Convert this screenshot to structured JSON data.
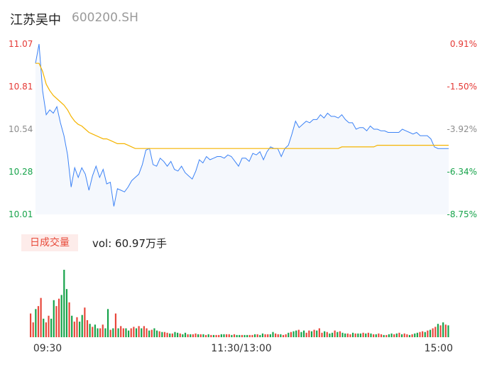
{
  "header": {
    "stock_name": "江苏吴中",
    "stock_code": "600200.SH"
  },
  "volume_panel": {
    "tab_label": "日成交量",
    "readout": "vol: 60.97万手"
  },
  "colors": {
    "price_line": "#3b82f6",
    "avg_line": "#f5b400",
    "up": "#e8463a",
    "down": "#16a34a",
    "axis_up": "#e53935",
    "axis_flat": "#8c8c8c",
    "axis_down": "#16a34a",
    "area_fill": "#f5f8fd"
  },
  "chart_data": [
    {
      "type": "line",
      "y_ticks": [
        "11.07",
        "10.81",
        "10.54",
        "10.28",
        "10.01"
      ],
      "pct_ticks": [
        "0.91%",
        "-1.50%",
        "-3.92%",
        "-6.34%",
        "-8.75%"
      ],
      "ylim": [
        10.01,
        11.07
      ],
      "x_ticks": [
        "09:30",
        "11:30/13:00",
        "15:00"
      ],
      "series": [
        {
          "values": [
            10.95,
            11.07,
            10.78,
            10.63,
            10.66,
            10.64,
            10.68,
            10.58,
            10.5,
            10.38,
            10.18,
            10.3,
            10.24,
            10.3,
            10.26,
            10.16,
            10.25,
            10.31,
            10.24,
            10.29,
            10.2,
            10.21,
            10.06,
            10.17,
            10.16,
            10.15,
            10.18,
            10.22,
            10.24,
            10.26,
            10.32,
            10.41,
            10.42,
            10.32,
            10.31,
            10.36,
            10.34,
            10.31,
            10.34,
            10.29,
            10.28,
            10.31,
            10.27,
            10.25,
            10.23,
            10.28,
            10.35,
            10.33,
            10.37,
            10.35,
            10.36,
            10.37,
            10.37,
            10.36,
            10.38,
            10.37,
            10.34,
            10.31,
            10.36,
            10.36,
            10.34,
            10.39,
            10.38,
            10.4,
            10.35,
            10.4,
            10.43,
            10.42,
            10.42,
            10.37,
            10.42,
            10.44,
            10.51,
            10.59,
            10.55,
            10.57,
            10.59,
            10.58,
            10.6,
            10.6,
            10.63,
            10.61,
            10.64,
            10.62,
            10.62,
            10.61,
            10.63,
            10.6,
            10.58,
            10.58,
            10.54,
            10.55,
            10.55,
            10.53,
            10.56,
            10.54,
            10.54,
            10.53,
            10.53,
            10.52,
            10.52,
            10.52,
            10.52,
            10.54,
            10.53,
            10.52,
            10.51,
            10.52,
            10.5,
            10.5,
            10.5,
            10.48,
            10.43,
            10.42,
            10.42,
            10.42,
            10.42
          ]
        },
        {
          "values": [
            10.95,
            10.95,
            10.9,
            10.82,
            10.78,
            10.75,
            10.73,
            10.71,
            10.69,
            10.66,
            10.62,
            10.59,
            10.57,
            10.56,
            10.54,
            10.52,
            10.51,
            10.5,
            10.49,
            10.48,
            10.48,
            10.47,
            10.46,
            10.45,
            10.45,
            10.45,
            10.44,
            10.43,
            10.42,
            10.42,
            10.42,
            10.42,
            10.42,
            10.42,
            10.42,
            10.42,
            10.42,
            10.42,
            10.42,
            10.42,
            10.42,
            10.42,
            10.42,
            10.42,
            10.42,
            10.42,
            10.42,
            10.42,
            10.42,
            10.42,
            10.42,
            10.42,
            10.42,
            10.42,
            10.42,
            10.42,
            10.42,
            10.42,
            10.42,
            10.42,
            10.42,
            10.42,
            10.42,
            10.42,
            10.42,
            10.42,
            10.42,
            10.42,
            10.42,
            10.42,
            10.42,
            10.42,
            10.42,
            10.42,
            10.42,
            10.42,
            10.42,
            10.42,
            10.42,
            10.42,
            10.42,
            10.42,
            10.42,
            10.42,
            10.42,
            10.42,
            10.43,
            10.43,
            10.43,
            10.43,
            10.43,
            10.43,
            10.43,
            10.43,
            10.43,
            10.43,
            10.44,
            10.44,
            10.44,
            10.44,
            10.44,
            10.44,
            10.44,
            10.44,
            10.44,
            10.44,
            10.44,
            10.44,
            10.44,
            10.44,
            10.44,
            10.44,
            10.44,
            10.44,
            10.44,
            10.44,
            10.44
          ]
        }
      ]
    },
    {
      "type": "bar",
      "values": [
        32,
        20,
        38,
        42,
        53,
        25,
        20,
        29,
        25,
        50,
        42,
        52,
        57,
        91,
        65,
        47,
        29,
        21,
        27,
        21,
        30,
        40,
        23,
        18,
        14,
        17,
        12,
        12,
        17,
        12,
        38,
        10,
        12,
        32,
        12,
        15,
        12,
        12,
        9,
        12,
        14,
        12,
        15,
        12,
        15,
        12,
        9,
        10,
        12,
        9,
        8,
        7,
        7,
        6,
        5,
        5,
        7,
        6,
        5,
        4,
        6,
        4,
        4,
        4,
        5,
        4,
        4,
        4,
        3,
        4,
        3,
        3,
        3,
        3,
        4,
        4,
        4,
        4,
        3,
        4,
        3,
        3,
        3,
        3,
        3,
        3,
        3,
        4,
        4,
        3,
        5,
        4,
        4,
        4,
        7,
        5,
        4,
        4,
        3,
        4,
        6,
        7,
        8,
        9,
        10,
        7,
        9,
        6,
        9,
        8,
        10,
        9,
        12,
        6,
        8,
        7,
        5,
        6,
        9,
        7,
        8,
        6,
        5,
        5,
        4,
        6,
        5,
        5,
        5,
        6,
        5,
        6,
        5,
        4,
        4,
        5,
        4,
        3,
        3,
        4,
        5,
        4,
        5,
        6,
        4,
        5,
        4,
        3,
        4,
        5,
        6,
        7,
        8,
        7,
        9,
        10,
        12,
        14,
        18,
        16,
        20,
        17,
        16
      ],
      "directions": [
        1,
        1,
        0,
        1,
        1,
        0,
        1,
        1,
        0,
        0,
        1,
        1,
        0,
        0,
        0,
        1,
        0,
        1,
        1,
        0,
        0,
        1,
        1,
        0,
        1,
        0,
        0,
        1,
        1,
        0,
        0,
        1,
        0,
        1,
        0,
        1,
        1,
        0,
        0,
        1,
        1,
        0,
        1,
        0,
        1,
        1,
        0,
        1,
        0,
        0,
        1,
        0,
        1,
        1,
        0,
        1,
        0,
        0,
        1,
        0,
        0,
        1,
        0,
        1,
        1,
        0,
        1,
        0,
        1,
        0,
        1,
        0,
        1,
        1,
        0,
        0,
        1,
        1,
        0,
        1,
        0,
        0,
        1,
        0,
        0,
        1,
        1,
        0,
        1,
        0,
        0,
        1,
        1,
        0,
        0,
        1,
        1,
        0,
        1,
        1,
        0,
        1,
        0,
        0,
        1,
        0,
        0,
        1,
        1,
        0,
        1,
        0,
        1,
        1,
        0,
        1,
        0,
        0,
        1,
        0,
        1,
        0,
        0,
        1,
        1,
        0,
        1,
        0,
        0,
        1,
        0,
        1,
        0,
        1,
        0,
        1,
        1,
        0,
        1,
        0,
        0,
        1,
        0,
        1,
        0,
        1,
        1,
        0,
        1,
        0,
        0,
        1,
        1,
        0,
        1,
        0,
        1,
        1,
        0,
        1,
        0,
        1
      ]
    }
  ]
}
